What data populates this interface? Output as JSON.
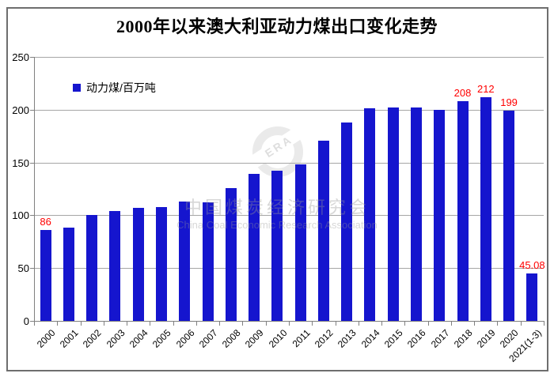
{
  "title": "2000年以来澳大利亚动力煤出口变化走势",
  "legend": {
    "label": "动力煤/百万吨"
  },
  "watermark": {
    "logo_text": "ERA",
    "cn": "中国煤炭经济研究会",
    "en": "China Coal Economic Research Association"
  },
  "colors": {
    "bar": "#1515ce",
    "value_label": "#ff0000",
    "grid": "#a6a6a6",
    "axis": "#808080",
    "frame": "#6e6e6e"
  },
  "chart_data": {
    "type": "bar",
    "title": "2000年以来澳大利亚动力煤出口变化走势",
    "series_name": "动力煤/百万吨",
    "categories": [
      "2000",
      "2001",
      "2002",
      "2003",
      "2004",
      "2005",
      "2006",
      "2007",
      "2008",
      "2009",
      "2010",
      "2011",
      "2012",
      "2013",
      "2014",
      "2015",
      "2016",
      "2017",
      "2018",
      "2019",
      "2020",
      "2021(1-3)"
    ],
    "values": [
      86,
      88,
      100,
      104,
      107,
      108,
      113,
      112,
      126,
      139,
      142,
      148,
      171,
      188,
      201,
      202,
      202,
      200,
      208,
      212,
      199,
      45.08
    ],
    "point_labels": {
      "0": "86",
      "18": "208",
      "19": "212",
      "20": "199",
      "21": "45.08"
    },
    "xlabel": "",
    "ylabel": "",
    "ylim": [
      0,
      250
    ],
    "yticks": [
      0,
      50,
      100,
      150,
      200,
      250
    ],
    "grid": "horizontal",
    "legend_position": "top-left"
  }
}
